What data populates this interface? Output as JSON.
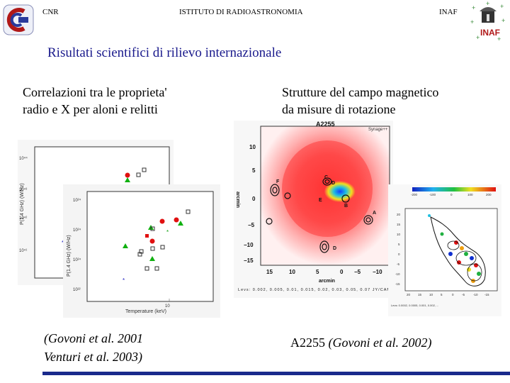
{
  "header": {
    "left": "CNR",
    "center": "ISTITUTO DI RADIOASTRONOMIA",
    "right": "INAF",
    "logo_right_text": "INAF"
  },
  "title": "Risultati scientifici di rilievo internazionale",
  "left_panel": {
    "heading_line1": "Correlazioni tra le proprieta' ",
    "heading_line2": "radio e X per aloni e relitti",
    "citation_line1": "(Govoni et al. 2001",
    "citation_line2": "Venturi et al. 2003)",
    "plot_xlabel": "Temperature (keV)",
    "plot_xtick": "10"
  },
  "right_panel": {
    "heading_line1": "Strutture del campo magnetico",
    "heading_line2": "da misure di rotazione",
    "map_title": "A2255",
    "map_corner_label": "Synage++",
    "map_ylabel": "arcmin",
    "map_xlabel": "arcmin",
    "map_yticks": [
      "10",
      "5",
      "0",
      "−5",
      "−10",
      "−15"
    ],
    "map_xticks": [
      "15",
      "10",
      "5",
      "0",
      "−5",
      "−10"
    ],
    "source_labels": [
      "C",
      "D",
      "E",
      "F",
      "B",
      "A",
      "D"
    ],
    "map_levels": "Levs: 0.002, 0.005, 0.01, 0.015, 0.02, 0.03, 0.05, 0.07 JY/CAM",
    "inset_colorbar_ticks": [
      "-200",
      "-100",
      "0",
      "100",
      "200"
    ],
    "inset_yticks": [
      "20",
      "15",
      "10",
      "5",
      "0",
      "-5",
      "-10",
      "-15"
    ],
    "inset_xticks": [
      "20",
      "15",
      "10",
      "5",
      "0",
      "-5",
      "-10",
      "-15"
    ],
    "caption": "A2255 ",
    "caption_italic": "(Govoni et al. 2002)"
  }
}
